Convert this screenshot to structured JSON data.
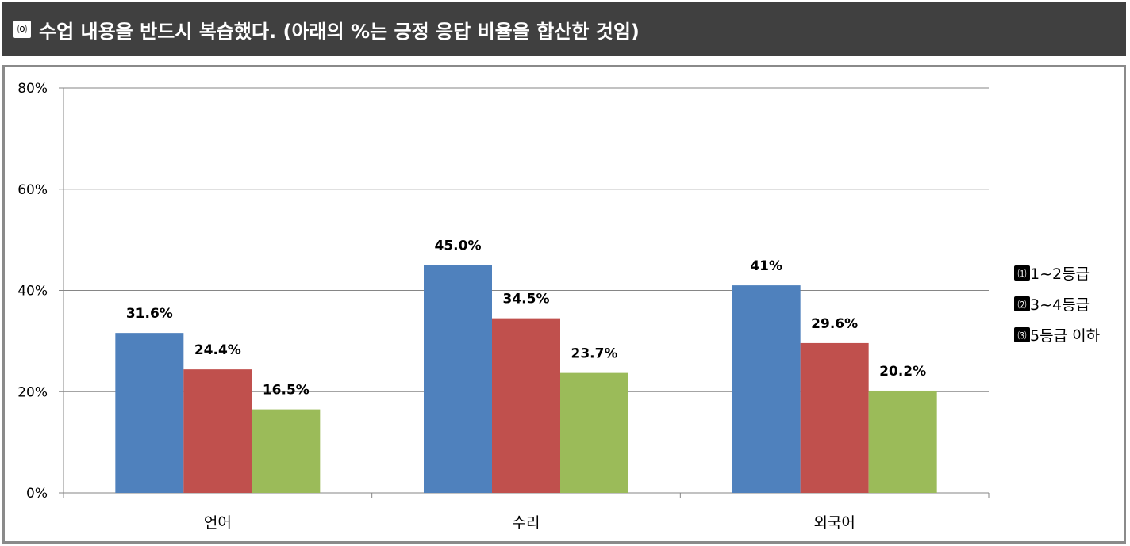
{
  "header": {
    "number": "⒪",
    "title": "수업 내용을 반드시 복습했다. (아래의 %는 긍정 응답 비율을 합산한 것임)"
  },
  "chart_data": {
    "type": "bar",
    "title": "",
    "xlabel": "",
    "ylabel": "",
    "categories": [
      "언어",
      "수리",
      "외국어"
    ],
    "ylim": [
      0,
      80
    ],
    "yticks": [
      "0%",
      "20%",
      "40%",
      "60%",
      "80%"
    ],
    "ytick_values": [
      0,
      20,
      40,
      60,
      80
    ],
    "grid": true,
    "legend_position": "right",
    "series": [
      {
        "name": "1~2등급",
        "marker": "⑴",
        "color": "#4F81BD",
        "values": [
          31.6,
          45.0,
          41
        ],
        "labels": [
          "31.6%",
          "45.0%",
          "41%"
        ]
      },
      {
        "name": "3~4등급",
        "marker": "⑵",
        "color": "#C0504D",
        "values": [
          24.4,
          34.5,
          29.6
        ],
        "labels": [
          "24.4%",
          "34.5%",
          "29.6%"
        ]
      },
      {
        "name": "5등급 이하",
        "marker": "⑶",
        "color": "#9BBB59",
        "values": [
          16.5,
          23.7,
          20.2
        ],
        "labels": [
          "16.5%",
          "23.7%",
          "20.2%"
        ]
      }
    ]
  }
}
